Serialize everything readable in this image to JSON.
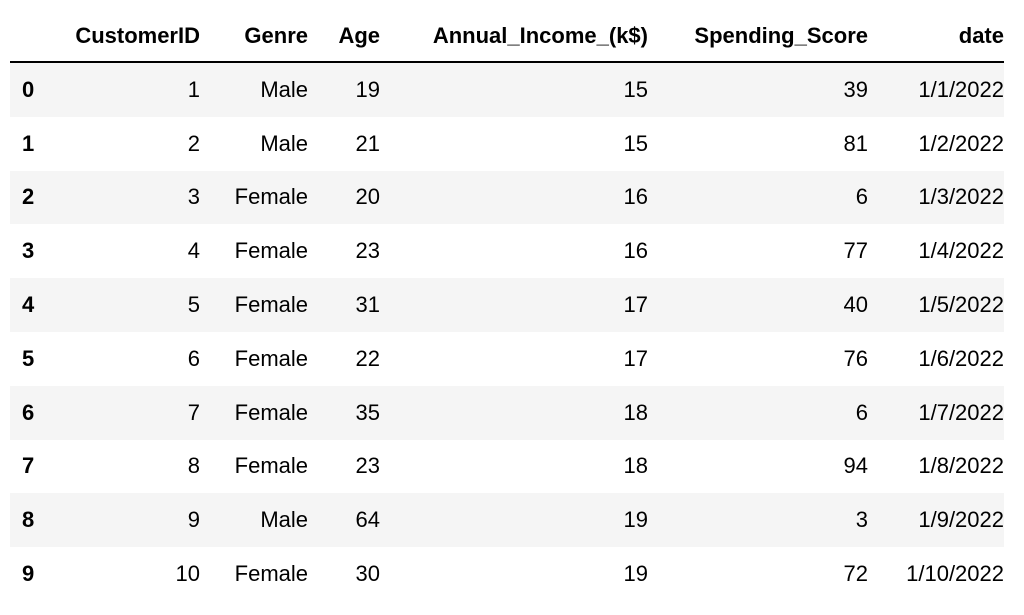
{
  "table": {
    "columns": [
      "",
      "CustomerID",
      "Genre",
      "Age",
      "Annual_Income_(k$)",
      "Spending_Score",
      "date"
    ],
    "rows": [
      {
        "index": "0",
        "CustomerID": "1",
        "Genre": "Male",
        "Age": "19",
        "Annual_Income": "15",
        "Spending_Score": "39",
        "date": "1/1/2022"
      },
      {
        "index": "1",
        "CustomerID": "2",
        "Genre": "Male",
        "Age": "21",
        "Annual_Income": "15",
        "Spending_Score": "81",
        "date": "1/2/2022"
      },
      {
        "index": "2",
        "CustomerID": "3",
        "Genre": "Female",
        "Age": "20",
        "Annual_Income": "16",
        "Spending_Score": "6",
        "date": "1/3/2022"
      },
      {
        "index": "3",
        "CustomerID": "4",
        "Genre": "Female",
        "Age": "23",
        "Annual_Income": "16",
        "Spending_Score": "77",
        "date": "1/4/2022"
      },
      {
        "index": "4",
        "CustomerID": "5",
        "Genre": "Female",
        "Age": "31",
        "Annual_Income": "17",
        "Spending_Score": "40",
        "date": "1/5/2022"
      },
      {
        "index": "5",
        "CustomerID": "6",
        "Genre": "Female",
        "Age": "22",
        "Annual_Income": "17",
        "Spending_Score": "76",
        "date": "1/6/2022"
      },
      {
        "index": "6",
        "CustomerID": "7",
        "Genre": "Female",
        "Age": "35",
        "Annual_Income": "18",
        "Spending_Score": "6",
        "date": "1/7/2022"
      },
      {
        "index": "7",
        "CustomerID": "8",
        "Genre": "Female",
        "Age": "23",
        "Annual_Income": "18",
        "Spending_Score": "94",
        "date": "1/8/2022"
      },
      {
        "index": "8",
        "CustomerID": "9",
        "Genre": "Male",
        "Age": "64",
        "Annual_Income": "19",
        "Spending_Score": "3",
        "date": "1/9/2022"
      },
      {
        "index": "9",
        "CustomerID": "10",
        "Genre": "Female",
        "Age": "30",
        "Annual_Income": "19",
        "Spending_Score": "72",
        "date": "1/10/2022"
      }
    ]
  }
}
